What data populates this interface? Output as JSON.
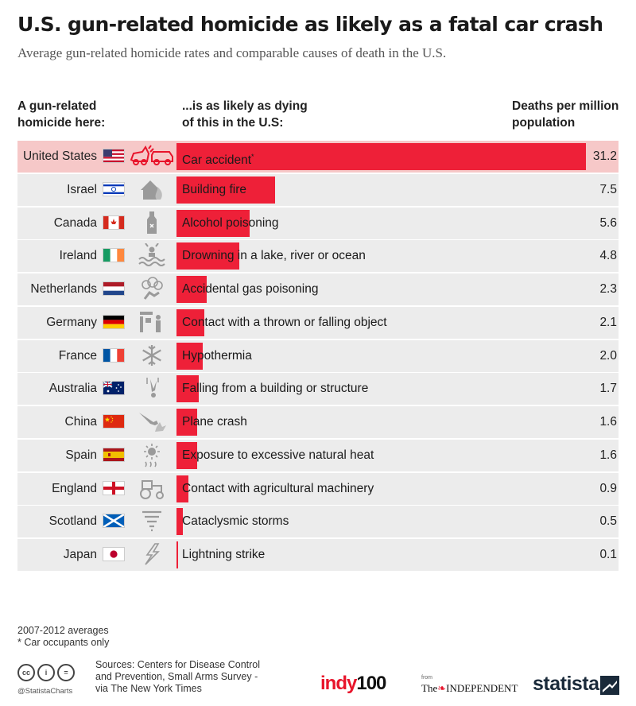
{
  "title": "U.S. gun-related homicide as likely as a fatal car crash",
  "subtitle": "Average gun-related homicide rates and comparable causes of death in the U.S.",
  "headers": {
    "col1_line1": "A gun-related",
    "col1_line2": "homicide here:",
    "col2_line1": "...is as likely as dying",
    "col2_line2": "of this in the U.S:",
    "col3_line1": "Deaths per million",
    "col3_line2": "population"
  },
  "chart_data": {
    "type": "bar",
    "orientation": "horizontal",
    "title": "U.S. gun-related homicide as likely as a fatal car crash",
    "subtitle": "Average gun-related homicide rates and comparable causes of death in the U.S.",
    "value_label": "Deaths per million population",
    "categories": [
      "United States",
      "Israel",
      "Canada",
      "Ireland",
      "Netherlands",
      "Germany",
      "France",
      "Australia",
      "China",
      "Spain",
      "England",
      "Scotland",
      "Japan"
    ],
    "causes": [
      "Car accident",
      "Building fire",
      "Alcohol poisoning",
      "Drowning in a lake, river or ocean",
      "Accidental gas poisoning",
      "Contact with a thrown or falling object",
      "Hypothermia",
      "Falling from a building or structure",
      "Plane crash",
      "Exposure to excessive natural heat",
      "Contact with agricultural machinery",
      "Cataclysmic storms",
      "Lightning strike"
    ],
    "values": [
      31.2,
      7.5,
      5.6,
      4.8,
      2.3,
      2.1,
      2.0,
      1.7,
      1.6,
      1.6,
      0.9,
      0.5,
      0.1
    ],
    "value_labels": [
      "31.2",
      "7.5",
      "5.6",
      "4.8",
      "2.3",
      "2.1",
      "2.0",
      "1.7",
      "1.6",
      "1.6",
      "0.9",
      "0.5",
      "0.1"
    ],
    "xlim": [
      0,
      31.2
    ],
    "highlight": "United States",
    "bar_color": "#ee2038",
    "highlight_row_color": "#f6c8c8",
    "row_color": "#ececec",
    "icons": [
      "car-crash-icon",
      "burning-house-icon",
      "bottle-icon",
      "drowning-icon",
      "gas-cloud-icon",
      "falling-object-icon",
      "snowflake-icon",
      "falling-person-icon",
      "plane-crash-icon",
      "sun-heat-icon",
      "tractor-icon",
      "tornado-icon",
      "lightning-icon"
    ]
  },
  "footnotes": {
    "averages": "2007-2012 averages",
    "asterisk": "* Car occupants only"
  },
  "sources": {
    "line1": "Sources: Centers for Disease Control",
    "line2": "and Prevention, Small Arms Survey -",
    "line3": "via The New York Times"
  },
  "branding": {
    "cc_handle": "@StatistaCharts",
    "indy_word": "indy",
    "indy_num": "100",
    "from_label": "from",
    "independent_the": "The",
    "independent_word": "INDEPENDENT",
    "statista": "statista"
  }
}
